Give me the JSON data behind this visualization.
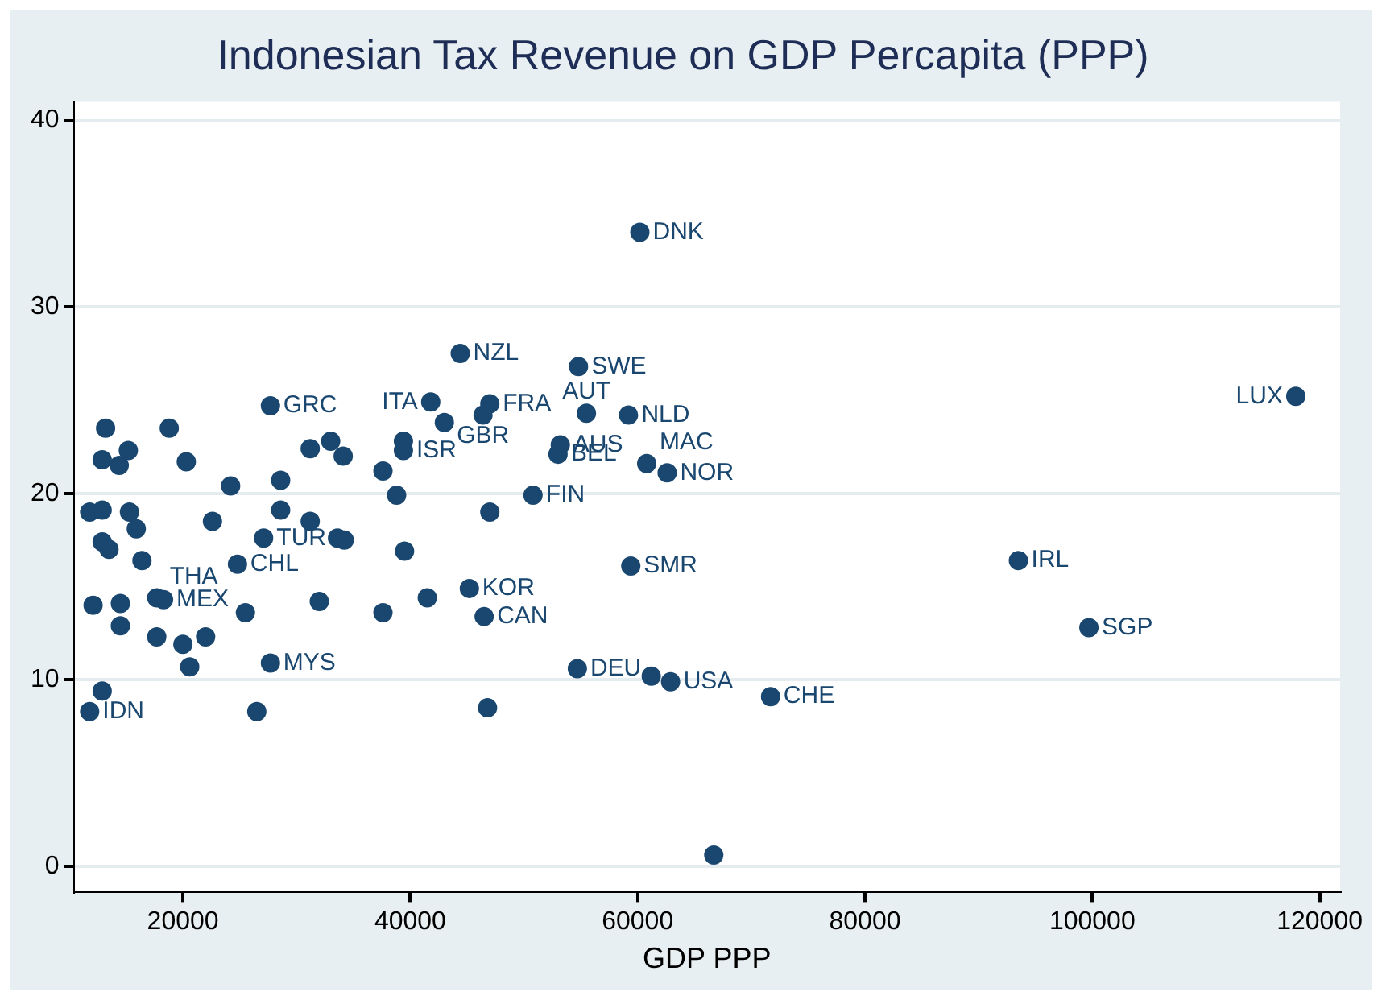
{
  "chart_data": {
    "type": "scatter",
    "title": "Indonesian Tax Revenue on GDP Percapita (PPP)",
    "xlabel": "GDP PPP",
    "xlim": [
      10400,
      121800
    ],
    "xticks": [
      20000,
      40000,
      60000,
      80000,
      100000,
      120000
    ],
    "ylim": [
      -1.4,
      41
    ],
    "yticks": [
      0,
      10,
      20,
      30,
      40
    ],
    "grid": "y",
    "legend": false,
    "marker": "circle",
    "series": [
      {
        "color": "#1a476f",
        "x": [
          11800,
          12900,
          12100,
          11800,
          12900,
          12900,
          13500,
          13200,
          12900,
          14400,
          15200,
          14500,
          14500,
          15300,
          15900,
          16400,
          17700,
          18300,
          17700,
          18800,
          20000,
          20300,
          20600,
          22000,
          22600,
          24200,
          24800,
          25500,
          27100,
          27700,
          26500,
          27700,
          28600,
          28600,
          31200,
          31200,
          32000,
          33000,
          34100,
          33600,
          34200,
          37600,
          37600,
          38800,
          39400,
          39400,
          39500,
          41500,
          41800,
          43000,
          44400,
          45200,
          46500,
          46800,
          47000,
          46400,
          47000,
          50800,
          54800,
          53200,
          53000,
          55500,
          59200,
          60200,
          60800,
          62600,
          59400,
          54700,
          61200,
          62900,
          66700,
          71700,
          93500,
          99700,
          117900
        ],
        "values": [
          8.3,
          9.4,
          14.0,
          19.0,
          19.1,
          17.4,
          17.0,
          23.5,
          21.8,
          21.5,
          22.3,
          14.1,
          12.9,
          19.0,
          18.1,
          16.4,
          14.4,
          14.3,
          12.3,
          23.5,
          11.9,
          21.7,
          10.7,
          12.3,
          18.5,
          20.4,
          16.2,
          13.6,
          17.6,
          24.7,
          8.3,
          10.9,
          19.1,
          20.7,
          18.5,
          22.4,
          14.2,
          22.8,
          22.0,
          17.6,
          17.5,
          13.6,
          21.2,
          19.9,
          22.8,
          22.3,
          16.9,
          14.4,
          24.9,
          23.8,
          27.5,
          14.9,
          13.4,
          8.5,
          24.8,
          24.2,
          19.0,
          19.9,
          26.8,
          22.6,
          22.1,
          24.3,
          24.2,
          34.0,
          21.6,
          21.1,
          16.1,
          10.6,
          10.2,
          9.9,
          0.6,
          9.1,
          16.4,
          12.8,
          25.2
        ]
      }
    ],
    "annotations": [
      {
        "text": "IDN",
        "x": 11800,
        "y": 8.3
      },
      {
        "text": "THA",
        "x": 17700,
        "y": 14.4
      },
      {
        "text": "MEX",
        "x": 18300,
        "y": 14.3
      },
      {
        "text": "CHL",
        "x": 24800,
        "y": 16.2
      },
      {
        "text": "TUR",
        "x": 27100,
        "y": 17.6
      },
      {
        "text": "GRC",
        "x": 27700,
        "y": 24.7
      },
      {
        "text": "MYS",
        "x": 27700,
        "y": 10.9
      },
      {
        "text": "ISR",
        "x": 39400,
        "y": 22.3
      },
      {
        "text": "ITA",
        "x": 41800,
        "y": 24.9
      },
      {
        "text": "NZL",
        "x": 44400,
        "y": 27.5
      },
      {
        "text": "KOR",
        "x": 45200,
        "y": 14.9
      },
      {
        "text": "CAN",
        "x": 46500,
        "y": 13.4
      },
      {
        "text": "FRA",
        "x": 47000,
        "y": 24.8
      },
      {
        "text": "GBR",
        "x": 46400,
        "y": 24.2
      },
      {
        "text": "FIN",
        "x": 50800,
        "y": 19.9
      },
      {
        "text": "SWE",
        "x": 54800,
        "y": 26.8
      },
      {
        "text": "AUS",
        "x": 53200,
        "y": 22.6
      },
      {
        "text": "BEL",
        "x": 53000,
        "y": 22.1
      },
      {
        "text": "AUT",
        "x": 55500,
        "y": 24.3
      },
      {
        "text": "NLD",
        "x": 59200,
        "y": 24.2
      },
      {
        "text": "DNK",
        "x": 60200,
        "y": 34.0
      },
      {
        "text": "MAC",
        "x": 60800,
        "y": 21.6
      },
      {
        "text": "NOR",
        "x": 62600,
        "y": 21.1
      },
      {
        "text": "SMR",
        "x": 59400,
        "y": 16.1
      },
      {
        "text": "DEU",
        "x": 54700,
        "y": 10.6
      },
      {
        "text": "USA",
        "x": 62900,
        "y": 9.9
      },
      {
        "text": "CHE",
        "x": 71700,
        "y": 9.1
      },
      {
        "text": "IRL",
        "x": 93500,
        "y": 16.4
      },
      {
        "text": "SGP",
        "x": 99700,
        "y": 12.8
      },
      {
        "text": "LUX",
        "x": 117900,
        "y": 25.2
      }
    ]
  }
}
